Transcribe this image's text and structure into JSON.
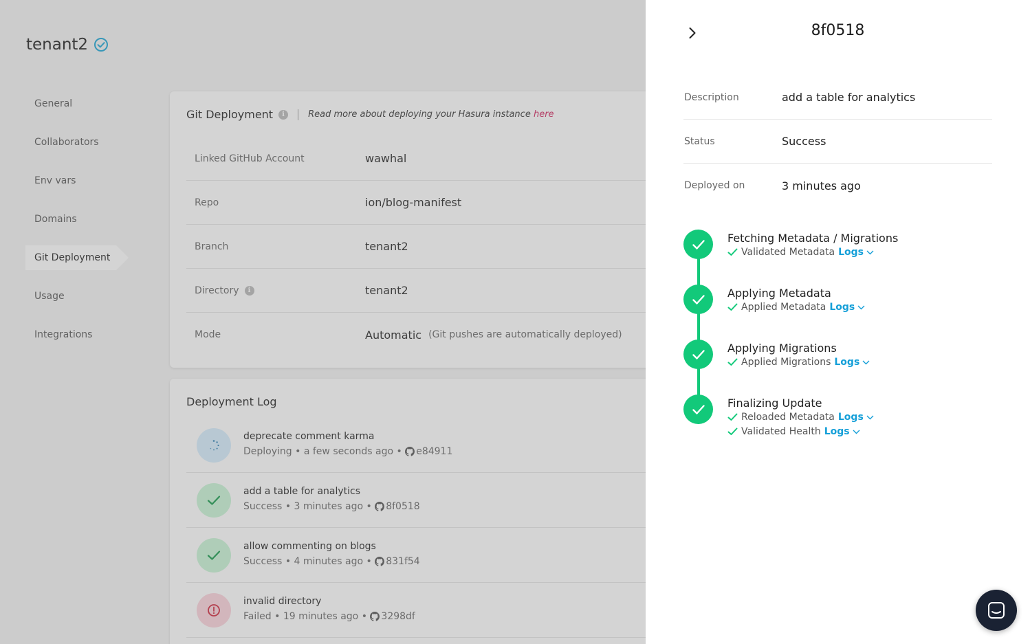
{
  "tenant": {
    "name": "tenant2"
  },
  "sidebar": {
    "items": [
      {
        "label": "General"
      },
      {
        "label": "Collaborators"
      },
      {
        "label": "Env vars"
      },
      {
        "label": "Domains"
      },
      {
        "label": "Git Deployment",
        "active": true
      },
      {
        "label": "Usage"
      },
      {
        "label": "Integrations"
      }
    ]
  },
  "git_deployment": {
    "title": "Git Deployment",
    "read_more_text": "Read more about deploying your Hasura instance",
    "read_more_link": "here",
    "fields": [
      {
        "label": "Linked GitHub Account",
        "value": "wawhal"
      },
      {
        "label": "Repo",
        "value": "ion/blog-manifest"
      },
      {
        "label": "Branch",
        "value": "tenant2"
      },
      {
        "label": "Directory",
        "value": "tenant2"
      },
      {
        "label": "Mode",
        "value": "Automatic",
        "note": "(Git pushes are automatically deployed)"
      }
    ]
  },
  "deployment_log": {
    "title": "Deployment Log",
    "items": [
      {
        "name": "deprecate comment karma",
        "status": "Deploying",
        "time": "a few seconds ago",
        "commit": "e84911"
      },
      {
        "name": "add a table for analytics",
        "status": "Success",
        "time": "3 minutes ago",
        "commit": "8f0518"
      },
      {
        "name": "allow commenting on blogs",
        "status": "Success",
        "time": "4 minutes ago",
        "commit": "831f54"
      },
      {
        "name": "invalid directory",
        "status": "Failed",
        "time": "19 minutes ago",
        "commit": "3298df"
      }
    ],
    "separator": "•"
  },
  "drawer": {
    "title": "8f0518",
    "details": [
      {
        "label": "Description",
        "value": "add a table for analytics"
      },
      {
        "label": "Status",
        "value": "Success"
      },
      {
        "label": "Deployed on",
        "value": "3 minutes ago"
      }
    ],
    "steps": [
      {
        "title": "Fetching Metadata / Migrations",
        "subs": [
          {
            "text": "Validated Metadata",
            "link": "Logs"
          }
        ]
      },
      {
        "title": "Applying Metadata",
        "subs": [
          {
            "text": "Applied Metadata",
            "link": "Logs"
          }
        ]
      },
      {
        "title": "Applying Migrations",
        "subs": [
          {
            "text": "Applied Migrations",
            "link": "Logs"
          }
        ]
      },
      {
        "title": "Finalizing Update",
        "subs": [
          {
            "text": "Reloaded Metadata",
            "link": "Logs"
          },
          {
            "text": "Validated Health",
            "link": "Logs"
          }
        ]
      }
    ]
  },
  "colors": {
    "success": "#12c97a",
    "link": "#149fd8",
    "accent_link": "#d0245e",
    "verified": "#1aa6d6",
    "deploying_bg": "#d6eefe",
    "success_bg": "#c9f5d6",
    "failed_bg": "#fcd3dc"
  }
}
